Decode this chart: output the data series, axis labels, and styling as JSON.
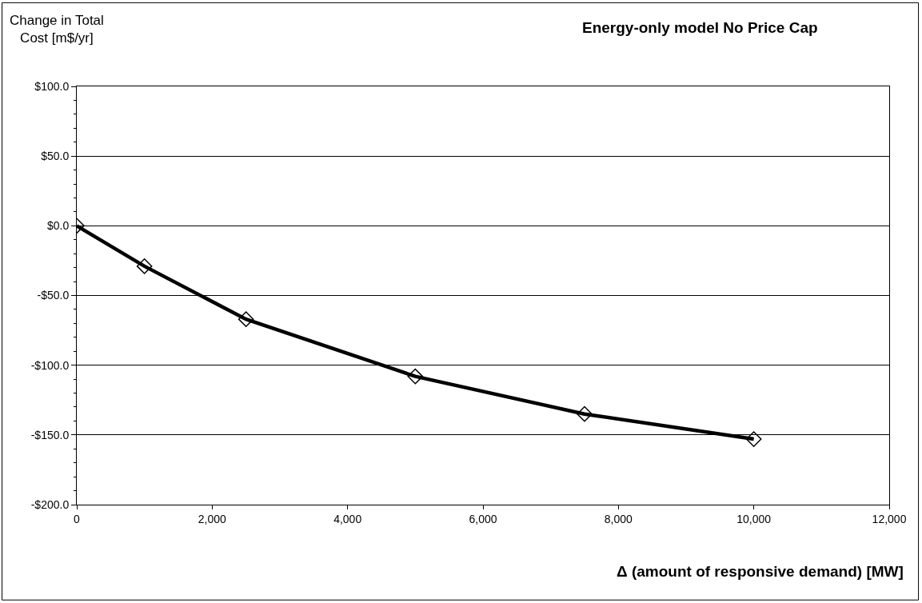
{
  "chart_data": {
    "type": "line",
    "title": "Energy-only model No Price Cap",
    "xlabel": "Δ (amount of responsive demand) [MW]",
    "ylabel": "Change in Total Cost [m$/yr]",
    "x": [
      0,
      1000,
      2500,
      5000,
      7500,
      10000
    ],
    "series": [
      {
        "color": "#000000",
        "values": [
          0,
          -29,
          -67,
          -108,
          -135,
          -153
        ]
      }
    ],
    "xlim": [
      0,
      12000
    ],
    "xticks": [
      0,
      {
        "value": 2000,
        "label": "2,000"
      },
      {
        "value": 4000,
        "label": "4,000"
      },
      {
        "value": 6000,
        "label": "6,000"
      },
      {
        "value": 8000,
        "label": "8,000"
      },
      {
        "value": 10000,
        "label": "10,000"
      },
      {
        "value": 12000,
        "label": "12,000"
      }
    ],
    "ylim": [
      -200,
      100
    ],
    "yticks": [
      {
        "value": -200,
        "label": "-$200.0"
      },
      {
        "value": -150,
        "label": "-$150.0"
      },
      {
        "value": -100,
        "label": "-$100.0"
      },
      {
        "value": -50,
        "label": "-$50.0"
      },
      {
        "value": 0,
        "label": "$0.0"
      },
      {
        "value": 50,
        "label": "$50.0"
      },
      {
        "value": 100,
        "label": "$100.0"
      }
    ],
    "grid": "y",
    "legend": false,
    "marker": "diamond",
    "line_style": "solid"
  }
}
